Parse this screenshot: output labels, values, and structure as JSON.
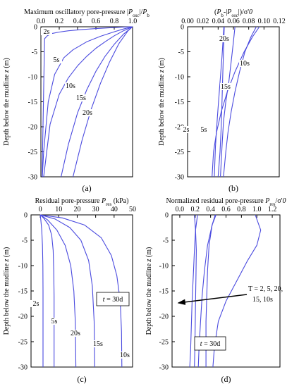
{
  "chart_data": [
    {
      "panel_label": "(a)",
      "type": "line",
      "title": "Maximum oscillatory pore-pressure |P_osc|/P_b",
      "title_parts": [
        "Maximum oscillatory pore-pressure |",
        "P",
        "osc",
        "|/",
        "P",
        "b"
      ],
      "xlabel": "",
      "ylabel": "Depth below the mudline z (m)",
      "ylabel_parts": [
        "Depth below the mudline ",
        "z",
        " (m)"
      ],
      "xlim": [
        0,
        1.0
      ],
      "ylim": [
        -30,
        0
      ],
      "xticks": [
        "0.0",
        "0.2",
        "0.4",
        "0.6",
        "0.8",
        "1.0"
      ],
      "yticks": [
        "0",
        "-5",
        "-10",
        "-15",
        "-20",
        "-25",
        "-30"
      ],
      "x_axis_position": "top",
      "series": [
        {
          "name": "2s",
          "x": [
            0.013,
            0.04,
            0.07,
            0.12,
            0.2,
            0.3,
            0.45,
            0.6,
            0.75,
            0.9,
            1.0
          ],
          "y": [
            -30,
            -2.4,
            -1.8,
            -1.35,
            -1.05,
            -0.8,
            -0.55,
            -0.37,
            -0.2,
            -0.06,
            0
          ]
        },
        {
          "name": "5s",
          "x": [
            0.015,
            0.03,
            0.08,
            0.15,
            0.25,
            0.35,
            0.5,
            0.65,
            0.8,
            0.9,
            1.0
          ],
          "y": [
            -30,
            -25,
            -15,
            -9.5,
            -6.2,
            -4.6,
            -3.0,
            -1.9,
            -1.0,
            -0.45,
            0
          ]
        },
        {
          "name": "10s",
          "x": [
            0.03,
            0.1,
            0.2,
            0.3,
            0.4,
            0.5,
            0.6,
            0.7,
            0.8,
            0.9,
            1.0
          ],
          "y": [
            -30,
            -19.5,
            -13.5,
            -10.2,
            -7.8,
            -5.9,
            -4.3,
            -3.0,
            -1.8,
            -0.8,
            0
          ]
        },
        {
          "name": "15s",
          "x": [
            0.22,
            0.3,
            0.4,
            0.5,
            0.6,
            0.7,
            0.8,
            0.9,
            1.0
          ],
          "y": [
            -30,
            -23.5,
            -17.2,
            -12.6,
            -8.9,
            -5.9,
            -3.5,
            -1.5,
            0
          ]
        },
        {
          "name": "20s",
          "x": [
            0.35,
            0.45,
            0.55,
            0.65,
            0.75,
            0.85,
            0.95,
            1.0
          ],
          "y": [
            -30,
            -22.6,
            -16.4,
            -11.3,
            -7.0,
            -3.4,
            -0.8,
            0
          ]
        }
      ],
      "annotations": [
        "2s",
        "5s",
        "10s",
        "15s",
        "20s"
      ]
    },
    {
      "panel_label": "(b)",
      "type": "line",
      "title": "(P_b-|P_osc|)/σ'_0",
      "title_parts": [
        "(",
        "P",
        "b",
        "-|",
        "P",
        "osc",
        "|)/σ'",
        "0"
      ],
      "xlabel": "",
      "ylabel": "Depth below the mudline z (m)",
      "ylabel_parts": [
        "Depth below the mudline ",
        "z",
        " (m)"
      ],
      "xlim": [
        0,
        0.12
      ],
      "ylim": [
        -30,
        0
      ],
      "xticks": [
        "0.00",
        "0.02",
        "0.04",
        "0.06",
        "0.08",
        "0.10",
        "0.12"
      ],
      "yticks": [
        "0",
        "-5",
        "-10",
        "-15",
        "-20",
        "-25",
        "-30"
      ],
      "x_axis_position": "top",
      "series": [
        {
          "name": "2s",
          "x": [
            0.048,
            0.047,
            0.046,
            0.045,
            0.044,
            0.0425,
            0.041,
            0.04
          ],
          "y": [
            0,
            -5,
            -10,
            -15,
            -20,
            -25,
            -28,
            -30
          ]
        },
        {
          "name": "5s",
          "x": [
            0.0475,
            0.045,
            0.042,
            0.039,
            0.0365,
            0.035
          ],
          "y": [
            0,
            -6,
            -12,
            -18,
            -24,
            -30
          ]
        },
        {
          "name": "20s",
          "x": [
            0.062,
            0.06,
            0.057,
            0.054,
            0.05,
            0.047,
            0.045,
            0.043
          ],
          "y": [
            0,
            -3,
            -7,
            -11,
            -15,
            -19,
            -24,
            -30
          ]
        },
        {
          "name": "15s",
          "x": [
            0.09,
            0.083,
            0.075,
            0.068,
            0.062,
            0.057,
            0.053,
            0.05,
            0.047
          ],
          "y": [
            0,
            -2,
            -5,
            -9,
            -13,
            -17,
            -21,
            -25,
            -30
          ]
        },
        {
          "name": "10s",
          "x": [
            0.094,
            0.085,
            0.074,
            0.062,
            0.052,
            0.044,
            0.038,
            0.034,
            0.032
          ],
          "y": [
            0,
            -2,
            -5,
            -9,
            -13,
            -17,
            -21,
            -25,
            -30
          ]
        }
      ],
      "annotations": [
        "20s",
        "10s",
        "15s",
        "2s",
        "5s"
      ]
    },
    {
      "panel_label": "(c)",
      "type": "line",
      "title": "Residual pore-pressure P_res (kPa)",
      "title_parts": [
        "Residual pore-pressure ",
        "P",
        "res",
        " (kPa)"
      ],
      "xlabel": "",
      "ylabel": "Depth below the mudline z (m)",
      "ylabel_parts": [
        "Depth below the mudline ",
        "z",
        " (m)"
      ],
      "xlim": [
        -5,
        50
      ],
      "ylim": [
        -30,
        0
      ],
      "xticks": [
        "0",
        "10",
        "20",
        "30",
        "40",
        "50"
      ],
      "yticks": [
        "0",
        "-5",
        "-10",
        "-15",
        "-20",
        "-25",
        "-30"
      ],
      "x_axis_position": "top",
      "annotation_box": "t = 30d",
      "annotation_box_parts": [
        "t",
        " = 30d"
      ],
      "series": [
        {
          "name": "2s",
          "x": [
            0,
            0.3,
            0.8,
            1.2,
            1.4,
            1.5,
            1.5
          ],
          "y": [
            0,
            -1,
            -3,
            -6,
            -10,
            -15,
            -30
          ]
        },
        {
          "name": "5s",
          "x": [
            0,
            2,
            4.5,
            6.2,
            7.0,
            7.3,
            7.5,
            7.5
          ],
          "y": [
            0,
            -0.7,
            -2,
            -4,
            -7,
            -11,
            -16,
            -30
          ]
        },
        {
          "name": "20s",
          "x": [
            0,
            4,
            9,
            13.5,
            16.5,
            18.2,
            19.0,
            19.3
          ],
          "y": [
            0,
            -1,
            -3,
            -6,
            -10,
            -15,
            -21,
            -30
          ]
        },
        {
          "name": "15s",
          "x": [
            0,
            8,
            16,
            22,
            26.2,
            28.2,
            29.2,
            29.5
          ],
          "y": [
            0,
            -0.8,
            -2.5,
            -5,
            -9,
            -14,
            -21,
            -30
          ]
        },
        {
          "name": "10s",
          "x": [
            0,
            12,
            24,
            33,
            38.5,
            41.5,
            43.3,
            44.0,
            44.2
          ],
          "y": [
            0,
            -0.6,
            -2,
            -4.5,
            -8,
            -12,
            -17,
            -23,
            -30
          ]
        }
      ],
      "annotations": [
        "2s",
        "5s",
        "20s",
        "15s",
        "10s"
      ]
    },
    {
      "panel_label": "(d)",
      "type": "line",
      "title": "Normalized residual pore-pressure P_res/σ'_0",
      "title_parts": [
        "Normalized residual pore-pressure ",
        "P",
        "res",
        "/σ'",
        "0"
      ],
      "xlabel": "",
      "ylabel": "Depth below the mudline z (m)",
      "ylabel_parts": [
        "Depth below the mudline ",
        "z",
        " (m)"
      ],
      "xlim": [
        -0.1,
        1.3
      ],
      "ylim": [
        -30,
        0
      ],
      "xticks": [
        "0.0",
        "0.2",
        "0.4",
        "0.6",
        "0.8",
        "1.0",
        "1.2"
      ],
      "yticks": [
        "0",
        "-5",
        "-10",
        "-15",
        "-20",
        "-25",
        "-30"
      ],
      "x_axis_position": "top",
      "annotation_box": "t = 30d",
      "annotation_box_parts": [
        "t",
        " = 30d"
      ],
      "annotation_text": [
        "T = 2, 5, 20,",
        "15, 10s"
      ],
      "series": [
        {
          "name": "2s",
          "x": [
            0.23,
            0.205,
            0.19,
            0.175,
            0.16,
            0.15,
            0.14,
            0.13
          ],
          "y": [
            0,
            -3,
            -7,
            -12,
            -17,
            -22,
            -27,
            -30
          ]
        },
        {
          "name": "5s",
          "x": [
            0.19,
            0.205,
            0.215,
            0.21,
            0.205,
            0.2,
            0.195,
            0.19
          ],
          "y": [
            0,
            -3,
            -7,
            -12,
            -17,
            -22,
            -27,
            -30
          ]
        },
        {
          "name": "20s",
          "x": [
            0.47,
            0.42,
            0.36,
            0.32,
            0.29,
            0.27,
            0.25,
            0.24
          ],
          "y": [
            0,
            -2,
            -6,
            -11,
            -16,
            -21,
            -26,
            -30
          ]
        },
        {
          "name": "15s",
          "x": [
            0.46,
            0.42,
            0.38,
            0.36,
            0.35,
            0.34,
            0.34,
            0.34
          ],
          "y": [
            0,
            -2,
            -6,
            -11,
            -16,
            -21,
            -26,
            -30
          ]
        },
        {
          "name": "10s",
          "x": [
            0.98,
            1.05,
            1.0,
            0.88,
            0.74,
            0.6,
            0.5,
            0.45,
            0.43
          ],
          "y": [
            0,
            -3,
            -6,
            -9,
            -13,
            -17,
            -21,
            -26,
            -30
          ]
        }
      ]
    }
  ],
  "line_color": "#4a4adf"
}
